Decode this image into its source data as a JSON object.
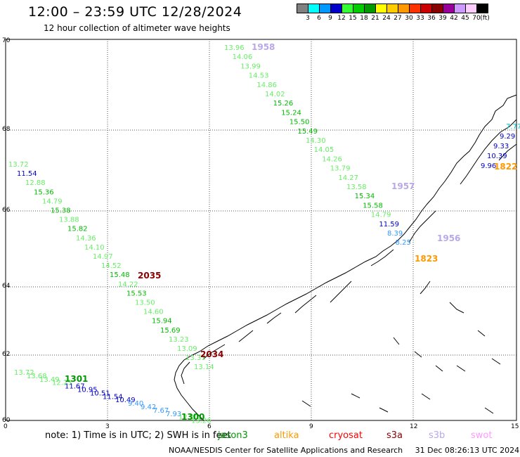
{
  "header": {
    "title": "12:00 – 23:59 UTC 12/28/2024",
    "subtitle": "12 hour collection of altimeter wave heights"
  },
  "legend": {
    "unit": "(ft)",
    "bins": [
      {
        "label": "3",
        "color": "#808080"
      },
      {
        "label": "6",
        "color": "#00ffff"
      },
      {
        "label": "9",
        "color": "#0099ff"
      },
      {
        "label": "12",
        "color": "#0000cc"
      },
      {
        "label": "15",
        "color": "#33ff33"
      },
      {
        "label": "18",
        "color": "#00cc00"
      },
      {
        "label": "21",
        "color": "#009900"
      },
      {
        "label": "24",
        "color": "#ffff00"
      },
      {
        "label": "27",
        "color": "#ffcc00"
      },
      {
        "label": "30",
        "color": "#ff9900"
      },
      {
        "label": "33",
        "color": "#ff3300"
      },
      {
        "label": "36",
        "color": "#cc0000"
      },
      {
        "label": "39",
        "color": "#880000"
      },
      {
        "label": "42",
        "color": "#990099"
      },
      {
        "label": "45",
        "color": "#cc99ff"
      },
      {
        "label": "70",
        "color": "#ffccff"
      },
      {
        "label": "",
        "color": "#000000"
      }
    ]
  },
  "axes": {
    "lat_ticks": [
      "70",
      "68",
      "66",
      "64",
      "62",
      "60"
    ],
    "lon_ticks": [
      "0",
      "3",
      "6",
      "9",
      "12",
      "15"
    ]
  },
  "tracks": [
    {
      "points": [
        {
          "v": "13.96",
          "c": "#66ee66"
        },
        {
          "v": "14.06",
          "c": "#66ee66"
        },
        {
          "v": "13.99",
          "c": "#66ee66"
        },
        {
          "v": "14.53",
          "c": "#66ee66"
        },
        {
          "v": "14.86",
          "c": "#66ee66"
        },
        {
          "v": "14.02",
          "c": "#66ee66"
        },
        {
          "v": "15.26",
          "c": "#00bb00"
        },
        {
          "v": "15.24",
          "c": "#00bb00"
        },
        {
          "v": "15.50",
          "c": "#00bb00"
        },
        {
          "v": "15.49",
          "c": "#00bb00"
        },
        {
          "v": "14.30",
          "c": "#66ee66"
        },
        {
          "v": "14.05",
          "c": "#66ee66"
        },
        {
          "v": "14.26",
          "c": "#66ee66"
        },
        {
          "v": "13.79",
          "c": "#66ee66"
        },
        {
          "v": "14.27",
          "c": "#66ee66"
        },
        {
          "v": "13.58",
          "c": "#66ee66"
        },
        {
          "v": "15.34",
          "c": "#00bb00"
        },
        {
          "v": "15.58",
          "c": "#00bb00"
        },
        {
          "v": "14.79",
          "c": "#66ee66"
        },
        {
          "v": "11.59",
          "c": "#0000cc"
        },
        {
          "v": "8.39",
          "c": "#3399ff"
        },
        {
          "v": "8.25",
          "c": "#3399ff"
        }
      ]
    },
    {
      "points": [
        {
          "v": "13.72",
          "c": "#66ee66"
        },
        {
          "v": "11.54",
          "c": "#0000cc"
        },
        {
          "v": "12.88",
          "c": "#66ee66"
        },
        {
          "v": "15.36",
          "c": "#00bb00"
        },
        {
          "v": "14.79",
          "c": "#66ee66"
        },
        {
          "v": "15.38",
          "c": "#00bb00"
        },
        {
          "v": "13.88",
          "c": "#66ee66"
        },
        {
          "v": "15.82",
          "c": "#00bb00"
        },
        {
          "v": "14.36",
          "c": "#66ee66"
        },
        {
          "v": "14.10",
          "c": "#66ee66"
        },
        {
          "v": "14.97",
          "c": "#66ee66"
        },
        {
          "v": "14.52",
          "c": "#66ee66"
        },
        {
          "v": "15.48",
          "c": "#00bb00"
        },
        {
          "v": "14.22",
          "c": "#66ee66"
        },
        {
          "v": "15.53",
          "c": "#00bb00"
        },
        {
          "v": "13.50",
          "c": "#66ee66"
        },
        {
          "v": "14.60",
          "c": "#66ee66"
        },
        {
          "v": "15.94",
          "c": "#00bb00"
        },
        {
          "v": "15.69",
          "c": "#00bb00"
        },
        {
          "v": "13.23",
          "c": "#66ee66"
        },
        {
          "v": "13.09",
          "c": "#66ee66"
        },
        {
          "v": "13.31",
          "c": "#66ee66"
        },
        {
          "v": "13.14",
          "c": "#66ee66"
        }
      ]
    },
    {
      "points": [
        {
          "v": "13.72",
          "c": "#66ee66"
        },
        {
          "v": "13.68",
          "c": "#66ee66"
        },
        {
          "v": "13.49",
          "c": "#66ee66"
        },
        {
          "v": "12.23",
          "c": "#66ee66"
        },
        {
          "v": "11.67",
          "c": "#0000cc"
        },
        {
          "v": "10.95",
          "c": "#0000cc"
        },
        {
          "v": "10.51",
          "c": "#0000cc"
        },
        {
          "v": "11.54",
          "c": "#0000cc"
        },
        {
          "v": "10.49",
          "c": "#0000cc"
        },
        {
          "v": "9.40",
          "c": "#3399ff"
        },
        {
          "v": "9.42",
          "c": "#3399ff"
        },
        {
          "v": "7.67",
          "c": "#3399ff"
        },
        {
          "v": "7.93",
          "c": "#3399ff"
        },
        {
          "v": "12.20",
          "c": "#66ee66"
        },
        {
          "v": "13.26",
          "c": "#66ee66"
        }
      ]
    },
    {
      "points": [
        {
          "v": "7.77",
          "c": "#00cccc"
        },
        {
          "v": "9.29",
          "c": "#0000cc"
        },
        {
          "v": "9.33",
          "c": "#0000cc"
        },
        {
          "v": "10.39",
          "c": "#0000cc"
        },
        {
          "v": "9.96",
          "c": "#0000cc"
        }
      ]
    }
  ],
  "time_labels": [
    {
      "text": "1958",
      "c": "#b8a8e8"
    },
    {
      "text": "1957",
      "c": "#b8a8e8"
    },
    {
      "text": "1956",
      "c": "#b8a8e8"
    },
    {
      "text": "1823",
      "c": "#ff9900"
    },
    {
      "text": "2035",
      "c": "#880000"
    },
    {
      "text": "2034",
      "c": "#880000"
    },
    {
      "text": "1301",
      "c": "#009900"
    },
    {
      "text": "1822",
      "c": "#ff9900"
    },
    {
      "text": "1300",
      "c": "#009900"
    }
  ],
  "note": {
    "text": "note:  1) Time is in UTC;  2) SWH is in feet",
    "satellites": [
      {
        "name": "jason3",
        "c": "#009900"
      },
      {
        "name": "altika",
        "c": "#ff9900"
      },
      {
        "name": "cryosat",
        "c": "#ff0000"
      },
      {
        "name": "s3a",
        "c": "#880000"
      },
      {
        "name": "s3b",
        "c": "#b8a8e8"
      },
      {
        "name": "swot",
        "c": "#ff99ff"
      }
    ]
  },
  "footer": {
    "credit": "NOAA/NESDIS Center for Satellite Applications and Research",
    "timestamp": "31 Dec 08:26:13 UTC 2024"
  }
}
